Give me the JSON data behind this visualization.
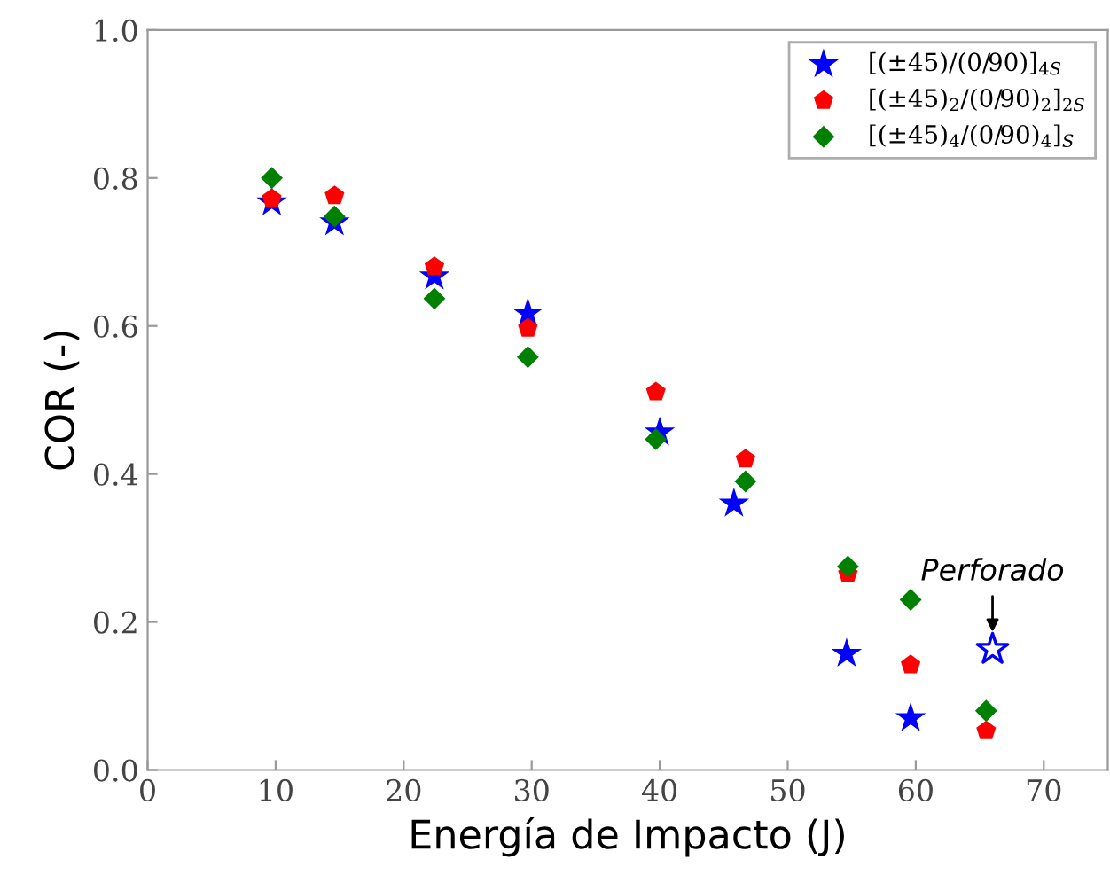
{
  "chart_data": {
    "type": "scatter",
    "xlabel": "Energía de Impacto (J)",
    "ylabel": "COR (-)",
    "xlim": [
      0,
      75
    ],
    "xticks": [
      0,
      10,
      20,
      30,
      40,
      50,
      60,
      70
    ],
    "ylim": [
      0,
      1.0
    ],
    "yticks": [
      {
        "value": 0,
        "label": "0.0"
      },
      0.2,
      0.4,
      0.6,
      0.8,
      {
        "value": 1.0,
        "label": "1.0"
      }
    ],
    "grid": false,
    "legend": "top right",
    "series": [
      {
        "name": "[(±45)/(0/90)]$_{4S}$",
        "color": "#0000ff",
        "marker": "star",
        "x": [
          9.7,
          14.6,
          22.4,
          29.7,
          40.0,
          45.8,
          54.6,
          59.6
        ],
        "values": [
          0.767,
          0.74,
          0.667,
          0.617,
          0.456,
          0.36,
          0.157,
          0.07
        ]
      },
      {
        "name": "[(±45)$_{2}$/(0/90)$_{2}$]$_{2S}$",
        "color": "#ff0000",
        "x": [
          9.7,
          14.6,
          22.4,
          29.7,
          39.7,
          46.7,
          54.7,
          59.6,
          65.5
        ],
        "values": [
          0.772,
          0.776,
          0.68,
          0.597,
          0.511,
          0.42,
          0.265,
          0.142,
          0.053
        ]
      },
      {
        "name": "[(±45)$_{4}$/(0/90)$_{4}$]$_{S}$",
        "color": "#008000",
        "marker": "diamond",
        "x": [
          9.7,
          14.6,
          22.4,
          29.7,
          39.7,
          46.7,
          54.7,
          59.6,
          65.5
        ],
        "values": [
          0.8,
          0.748,
          0.637,
          0.558,
          0.447,
          0.39,
          0.275,
          0.23,
          0.08
        ]
      },
      {
        "color": "#0000ff",
        "marker": "star",
        "x": [
          66.0
        ],
        "values": [
          0.163
        ]
      }
    ],
    "annotations": [
      {
        "text": "Perforado",
        "x": 66.0,
        "y": 0.163
      }
    ]
  }
}
